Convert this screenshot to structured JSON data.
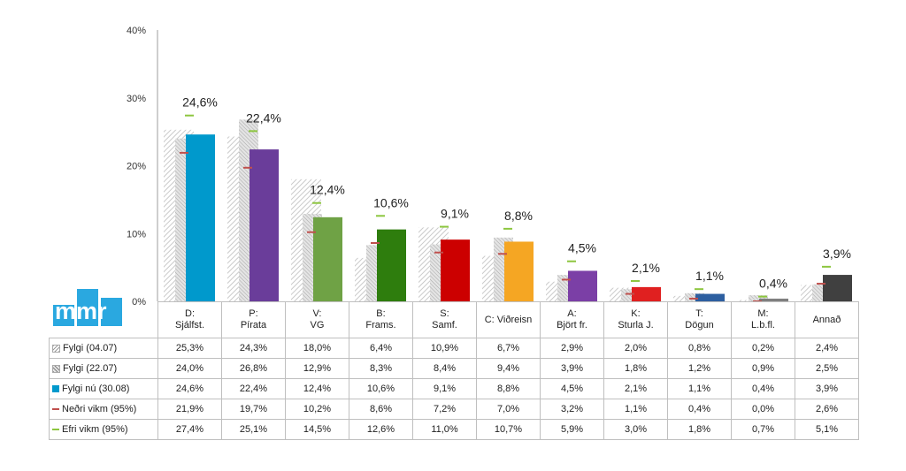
{
  "chart_data": {
    "type": "bar",
    "ylim": [
      0,
      40
    ],
    "ytick_labels": [
      "0%",
      "10%",
      "20%",
      "30%",
      "40%"
    ],
    "category_lines": [
      [
        "D:",
        "Sjálfst."
      ],
      [
        "P:",
        "Pírata"
      ],
      [
        "V:",
        "VG"
      ],
      [
        "B:",
        "Frams."
      ],
      [
        "S:",
        "Samf."
      ],
      [
        "C: Viðreisn",
        ""
      ],
      [
        "A:",
        "Björt fr."
      ],
      [
        "K:",
        "Sturla J."
      ],
      [
        "T:",
        "Dögun"
      ],
      [
        "M:",
        "L.b.fl."
      ],
      [
        "Annað",
        ""
      ]
    ],
    "current_colors": [
      "#0099cc",
      "#6a3d9a",
      "#6fa245",
      "#2e7d0d",
      "#cc0000",
      "#f5a623",
      "#7b3fa6",
      "#e02020",
      "#2d5fa0",
      "#7f7f7f",
      "#404040"
    ],
    "data_labels": [
      "24,6%",
      "22,4%",
      "12,4%",
      "10,6%",
      "9,1%",
      "8,8%",
      "4,5%",
      "2,1%",
      "1,1%",
      "0,4%",
      "3,9%"
    ],
    "series": [
      {
        "name": "Fylgi (04.07)",
        "key": "diagonal-stripes",
        "values": [
          25.3,
          24.3,
          18.0,
          6.4,
          10.9,
          6.7,
          2.9,
          2.0,
          0.8,
          0.2,
          2.4
        ],
        "labels": [
          "25,3%",
          "24,3%",
          "18,0%",
          "6,4%",
          "10,9%",
          "6,7%",
          "2,9%",
          "2,0%",
          "0,8%",
          "0,2%",
          "2,4%"
        ]
      },
      {
        "name": "Fylgi (22.07)",
        "key": "dotted-pattern",
        "values": [
          24.0,
          26.8,
          12.9,
          8.3,
          8.4,
          9.4,
          3.9,
          1.8,
          1.2,
          0.9,
          2.5
        ],
        "labels": [
          "24,0%",
          "26,8%",
          "12,9%",
          "8,3%",
          "8,4%",
          "9,4%",
          "3,9%",
          "1,8%",
          "1,2%",
          "0,9%",
          "2,5%"
        ]
      },
      {
        "name": "Fylgi nú (30.08)",
        "key": "solid",
        "values": [
          24.6,
          22.4,
          12.4,
          10.6,
          9.1,
          8.8,
          4.5,
          2.1,
          1.1,
          0.4,
          3.9
        ],
        "labels": [
          "24,6%",
          "22,4%",
          "12,4%",
          "10,6%",
          "9,1%",
          "8,8%",
          "4,5%",
          "2,1%",
          "1,1%",
          "0,4%",
          "3,9%"
        ]
      },
      {
        "name": "Neðri vikm (95%)",
        "key": "red-marker",
        "color": "#c0504d",
        "values": [
          21.9,
          19.7,
          10.2,
          8.6,
          7.2,
          7.0,
          3.2,
          1.1,
          0.4,
          0.0,
          2.6
        ],
        "labels": [
          "21,9%",
          "19,7%",
          "10,2%",
          "8,6%",
          "7,2%",
          "7,0%",
          "3,2%",
          "1,1%",
          "0,4%",
          "0,0%",
          "2,6%"
        ]
      },
      {
        "name": "Efri vikm (95%)",
        "key": "green-marker",
        "color": "#8dc63f",
        "values": [
          27.4,
          25.1,
          14.5,
          12.6,
          11.0,
          10.7,
          5.9,
          3.0,
          1.8,
          0.7,
          5.1
        ],
        "labels": [
          "27,4%",
          "25,1%",
          "14,5%",
          "12,6%",
          "11,0%",
          "10,7%",
          "5,9%",
          "3,0%",
          "1,8%",
          "0,7%",
          "5,1%"
        ]
      }
    ]
  },
  "logo": {
    "text": "mmr",
    "color": "#2aa8e0"
  }
}
